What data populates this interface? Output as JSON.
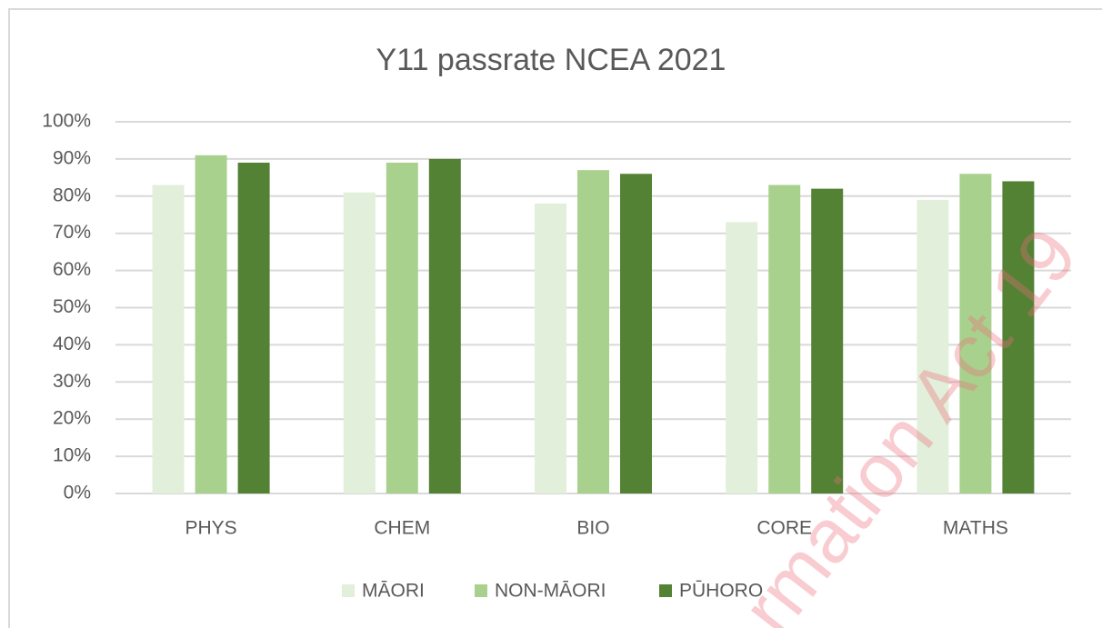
{
  "chart_data": {
    "type": "bar",
    "title": "Y11 passrate NCEA 2021",
    "categories": [
      "PHYS",
      "CHEM",
      "BIO",
      "CORE",
      "MATHS"
    ],
    "series": [
      {
        "name": "MĀORI",
        "color": "#e2efda",
        "values": [
          83,
          81,
          78,
          73,
          79
        ]
      },
      {
        "name": "NON-MĀORI",
        "color": "#a9d18e",
        "values": [
          91,
          89,
          87,
          83,
          86
        ]
      },
      {
        "name": "PŪHORO",
        "color": "#548235",
        "values": [
          89,
          90,
          86,
          82,
          84
        ]
      }
    ],
    "ylim": [
      0,
      100
    ],
    "yticks": [
      {
        "value": 0,
        "label": "0%"
      },
      {
        "value": 10,
        "label": "10%"
      },
      {
        "value": 20,
        "label": "20%"
      },
      {
        "value": 30,
        "label": "30%"
      },
      {
        "value": 40,
        "label": "40%"
      },
      {
        "value": 50,
        "label": "50%"
      },
      {
        "value": 60,
        "label": "60%"
      },
      {
        "value": 70,
        "label": "70%"
      },
      {
        "value": 80,
        "label": "80%"
      },
      {
        "value": 90,
        "label": "90%"
      },
      {
        "value": 100,
        "label": "100%"
      }
    ],
    "grid": true,
    "legend": "bottom",
    "watermark": "rmation Act 19"
  }
}
